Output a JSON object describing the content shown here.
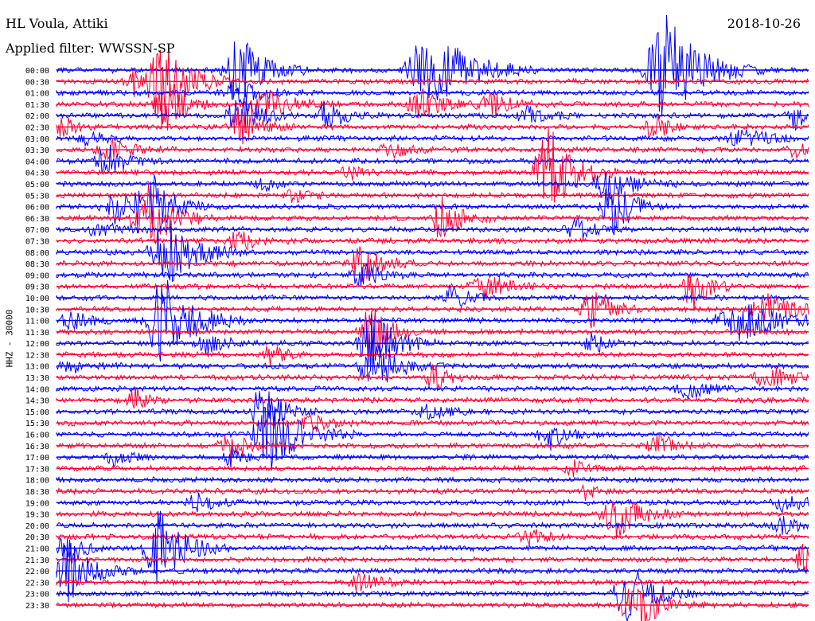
{
  "chart_data": {
    "type": "line",
    "title": "HL Voula, Attiki",
    "subtitle": "Applied filter: WWSSN-SP",
    "date": "2018-10-26",
    "ylabel": "HHZ - 30000",
    "xlabel": "",
    "grid": false,
    "legend": "none",
    "colors": {
      "even_rows": "#0000ff",
      "odd_rows": "#ff0033"
    },
    "row_labels": [
      "00:00",
      "00:30",
      "01:00",
      "01:30",
      "02:00",
      "02:30",
      "03:00",
      "03:30",
      "04:00",
      "04:30",
      "05:00",
      "05:30",
      "06:00",
      "06:30",
      "07:00",
      "07:30",
      "08:00",
      "08:30",
      "09:00",
      "09:30",
      "10:00",
      "10:30",
      "11:00",
      "11:30",
      "12:00",
      "12:30",
      "13:00",
      "13:30",
      "14:00",
      "14:30",
      "15:00",
      "15:30",
      "16:00",
      "16:30",
      "17:00",
      "17:30",
      "18:00",
      "18:30",
      "19:00",
      "19:30",
      "20:00",
      "20:30",
      "21:00",
      "21:30",
      "22:00",
      "22:30",
      "23:00",
      "23:30"
    ],
    "row_minutes": 30
  }
}
